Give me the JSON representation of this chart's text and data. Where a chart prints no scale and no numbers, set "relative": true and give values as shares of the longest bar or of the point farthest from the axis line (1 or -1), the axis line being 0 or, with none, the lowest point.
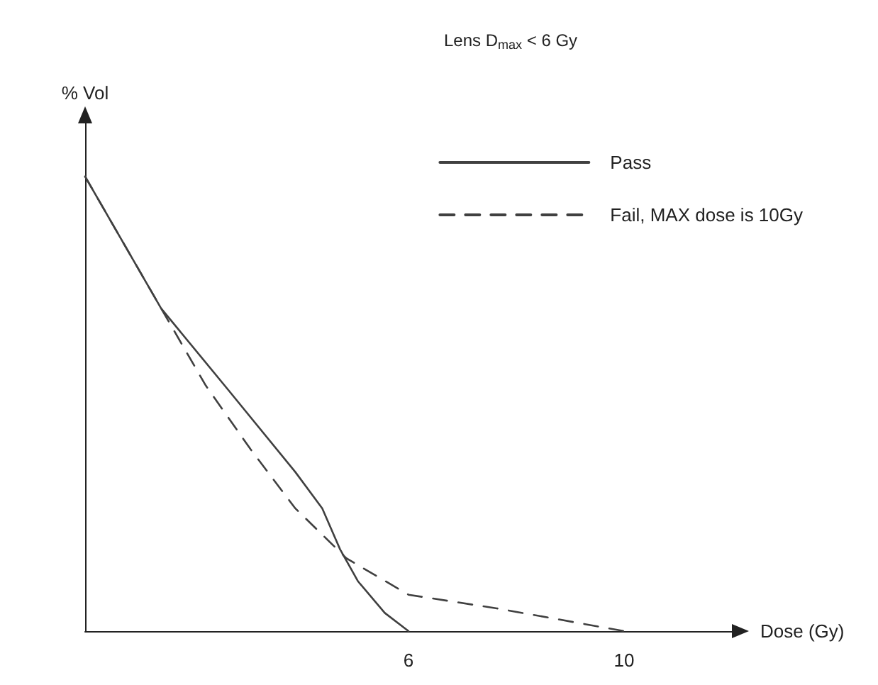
{
  "chart_data": {
    "type": "line",
    "title": "Lens D$_{max}$ < 6 Gy",
    "xlabel": "Dose (Gy)",
    "ylabel": "% Vol",
    "relative": true,
    "xlim": [
      0,
      12
    ],
    "xticks": [
      6,
      10
    ],
    "tick_labels": "x",
    "grid": false,
    "legend": "top right",
    "marker": "none",
    "series": [
      {
        "name": "Pass",
        "color": "#404040",
        "line_style": "solid",
        "x": [
          0,
          1.41,
          2.66,
          3.9,
          4.4,
          4.73,
          5.06,
          5.56,
          6
        ],
        "values": [
          1,
          0.71,
          0.53,
          0.35,
          0.27,
          0.18,
          0.11,
          0.04,
          0
        ]
      },
      {
        "name": "Fail, MAX dose is 10Gy",
        "color": "#404040",
        "line_style": "dashed",
        "x": [
          0,
          1.41,
          2.24,
          3.07,
          3.9,
          4.85,
          6,
          7.64,
          10
        ],
        "values": [
          1,
          0.71,
          0.54,
          0.4,
          0.27,
          0.16,
          0.08,
          0.05,
          0
        ]
      }
    ]
  }
}
